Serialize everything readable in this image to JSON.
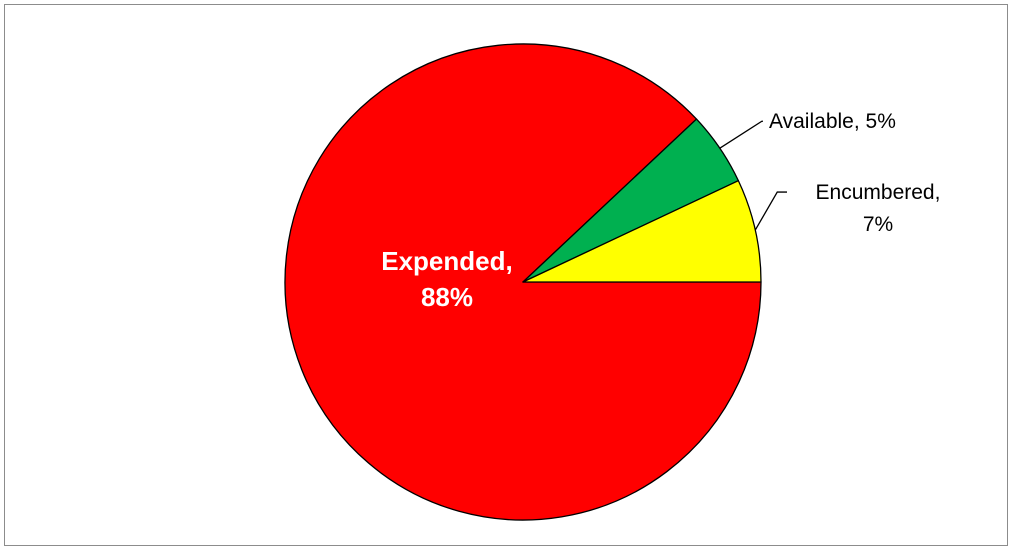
{
  "chart_data": {
    "type": "pie",
    "title": "",
    "slices": [
      {
        "label": "Expended",
        "value": 88,
        "display": "88%",
        "color": "#ff0000"
      },
      {
        "label": "Available",
        "value": 5,
        "display": "5%",
        "color": "#00b050"
      },
      {
        "label": "Encumbered",
        "value": 7,
        "display": "7%",
        "color": "#ffff00"
      }
    ],
    "legend": "none",
    "data_labels": "category and percentage"
  }
}
